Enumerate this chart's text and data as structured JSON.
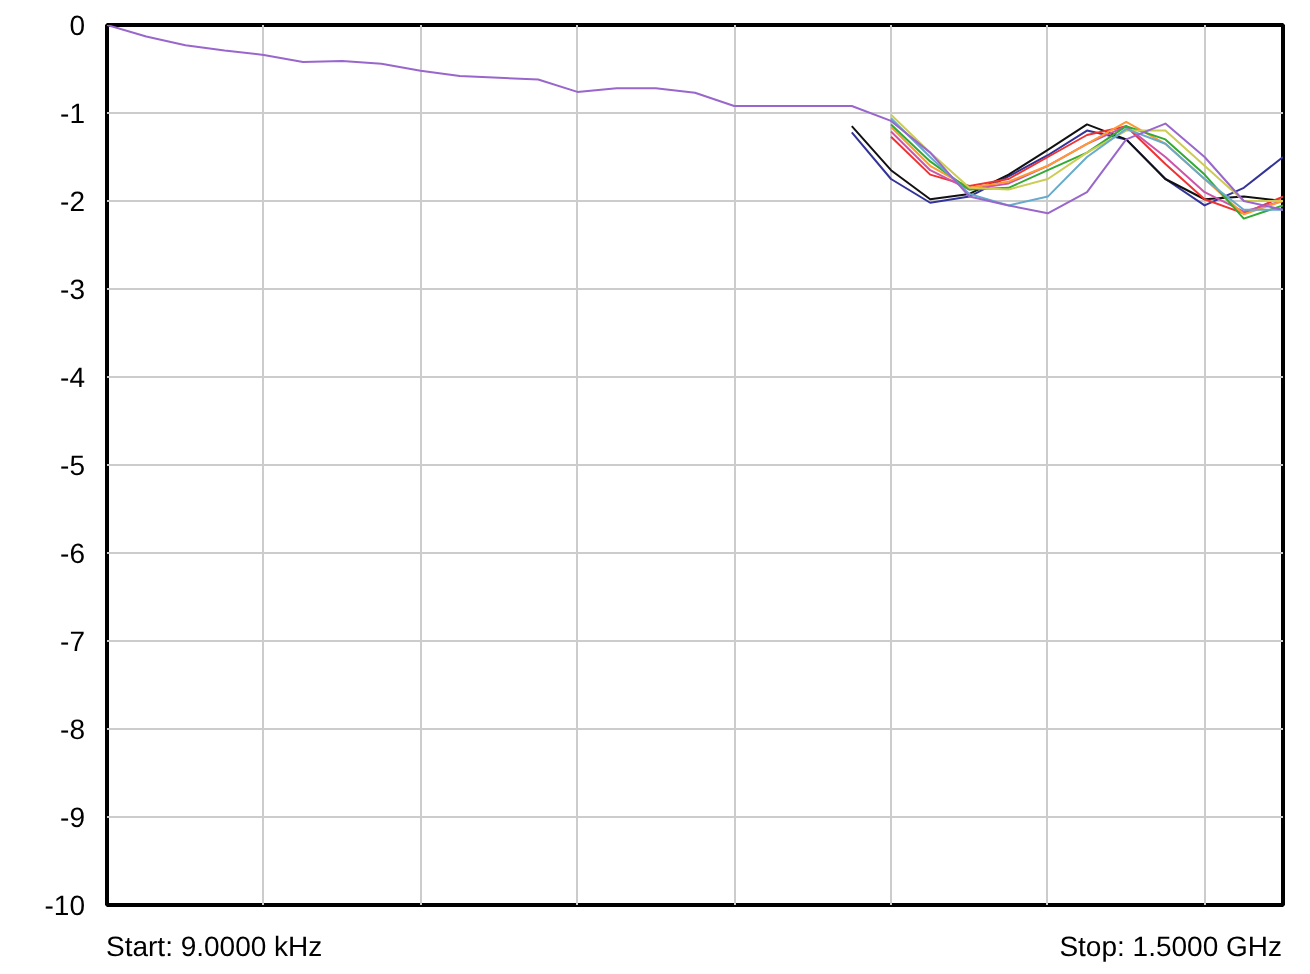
{
  "chart_data": {
    "type": "line",
    "categories": [
      null,
      null,
      null,
      null,
      null,
      null,
      null,
      null,
      null,
      null,
      null,
      null,
      null,
      null,
      null,
      null,
      null,
      null,
      null,
      null,
      null,
      null,
      null,
      null,
      null,
      null,
      null,
      null,
      null,
      null,
      null
    ],
    "ylim": [
      -10,
      0
    ],
    "yticks": [
      0,
      -1,
      -2,
      -3,
      -4,
      -5,
      -6,
      -7,
      -8,
      -9,
      -10
    ],
    "tick_labels": "y",
    "grid": true,
    "marker": "none",
    "line_style": "solid",
    "annotations": [
      "Start: 9.0000 kHz",
      "Stop: 1.5000 GHz"
    ],
    "series": [
      {
        "color": "#333399",
        "values": [
          null,
          null,
          null,
          null,
          null,
          null,
          null,
          null,
          null,
          null,
          null,
          null,
          null,
          null,
          null,
          null,
          null,
          null,
          null,
          -1.22,
          -1.75,
          -2.02,
          -1.95,
          -1.72,
          -1.48,
          -1.2,
          -1.3,
          -1.75,
          -2.05,
          -1.85,
          -1.5
        ]
      },
      {
        "color": "#111111",
        "values": [
          null,
          null,
          null,
          null,
          null,
          null,
          null,
          null,
          null,
          null,
          null,
          null,
          null,
          null,
          null,
          null,
          null,
          null,
          null,
          -1.15,
          -1.65,
          -1.98,
          -1.92,
          -1.7,
          -1.42,
          -1.13,
          -1.3,
          -1.75,
          -1.98,
          -1.95,
          -2.0
        ]
      },
      {
        "color": "#ee3333",
        "values": [
          null,
          null,
          null,
          null,
          null,
          null,
          null,
          null,
          null,
          null,
          null,
          null,
          null,
          null,
          null,
          null,
          null,
          null,
          null,
          null,
          -1.27,
          -1.7,
          -1.83,
          -1.75,
          -1.5,
          -1.25,
          -1.15,
          -1.58,
          -1.98,
          -2.14,
          -1.95
        ]
      },
      {
        "color": "#cc55aa",
        "values": [
          null,
          null,
          null,
          null,
          null,
          null,
          null,
          null,
          null,
          null,
          null,
          null,
          null,
          null,
          null,
          null,
          null,
          null,
          null,
          null,
          -1.21,
          -1.65,
          -1.87,
          -1.8,
          -1.6,
          -1.35,
          -1.15,
          -1.5,
          -1.9,
          -2.12,
          -2.0
        ]
      },
      {
        "color": "#ff9933",
        "values": [
          null,
          null,
          null,
          null,
          null,
          null,
          null,
          null,
          null,
          null,
          null,
          null,
          null,
          null,
          null,
          null,
          null,
          null,
          null,
          null,
          -1.16,
          -1.6,
          -1.85,
          -1.78,
          -1.6,
          -1.35,
          -1.1,
          -1.35,
          -1.75,
          -2.15,
          -2.0
        ]
      },
      {
        "color": "#33aa33",
        "values": [
          null,
          null,
          null,
          null,
          null,
          null,
          null,
          null,
          null,
          null,
          null,
          null,
          null,
          null,
          null,
          null,
          null,
          null,
          null,
          null,
          -1.13,
          -1.55,
          -1.87,
          -1.85,
          -1.65,
          -1.45,
          -1.15,
          -1.3,
          -1.7,
          -2.2,
          -2.05
        ]
      },
      {
        "color": "#cccc55",
        "values": [
          null,
          null,
          null,
          null,
          null,
          null,
          null,
          null,
          null,
          null,
          null,
          null,
          null,
          null,
          null,
          null,
          null,
          null,
          null,
          null,
          -1.02,
          -1.45,
          -1.85,
          -1.87,
          -1.75,
          -1.45,
          -1.2,
          -1.2,
          -1.6,
          -2.0,
          -2.0
        ]
      },
      {
        "color": "#66aacc",
        "values": [
          null,
          null,
          null,
          null,
          null,
          null,
          null,
          null,
          null,
          null,
          null,
          null,
          null,
          null,
          null,
          null,
          null,
          null,
          null,
          null,
          -1.06,
          -1.5,
          -1.92,
          -2.05,
          -1.95,
          -1.5,
          -1.18,
          -1.35,
          -1.75,
          -2.1,
          -2.1
        ]
      },
      {
        "color": "#9966cc",
        "values": [
          0,
          -0.13,
          -0.23,
          -0.29,
          -0.34,
          -0.42,
          -0.41,
          -0.44,
          -0.52,
          -0.58,
          -0.6,
          -0.62,
          -0.76,
          -0.72,
          -0.72,
          -0.77,
          -0.92,
          -0.92,
          -0.92,
          -0.92,
          -1.09,
          -1.45,
          -1.95,
          -2.05,
          -2.14,
          -1.9,
          -1.3,
          -1.12,
          -1.5,
          -2.0,
          -2.1
        ]
      }
    ]
  }
}
